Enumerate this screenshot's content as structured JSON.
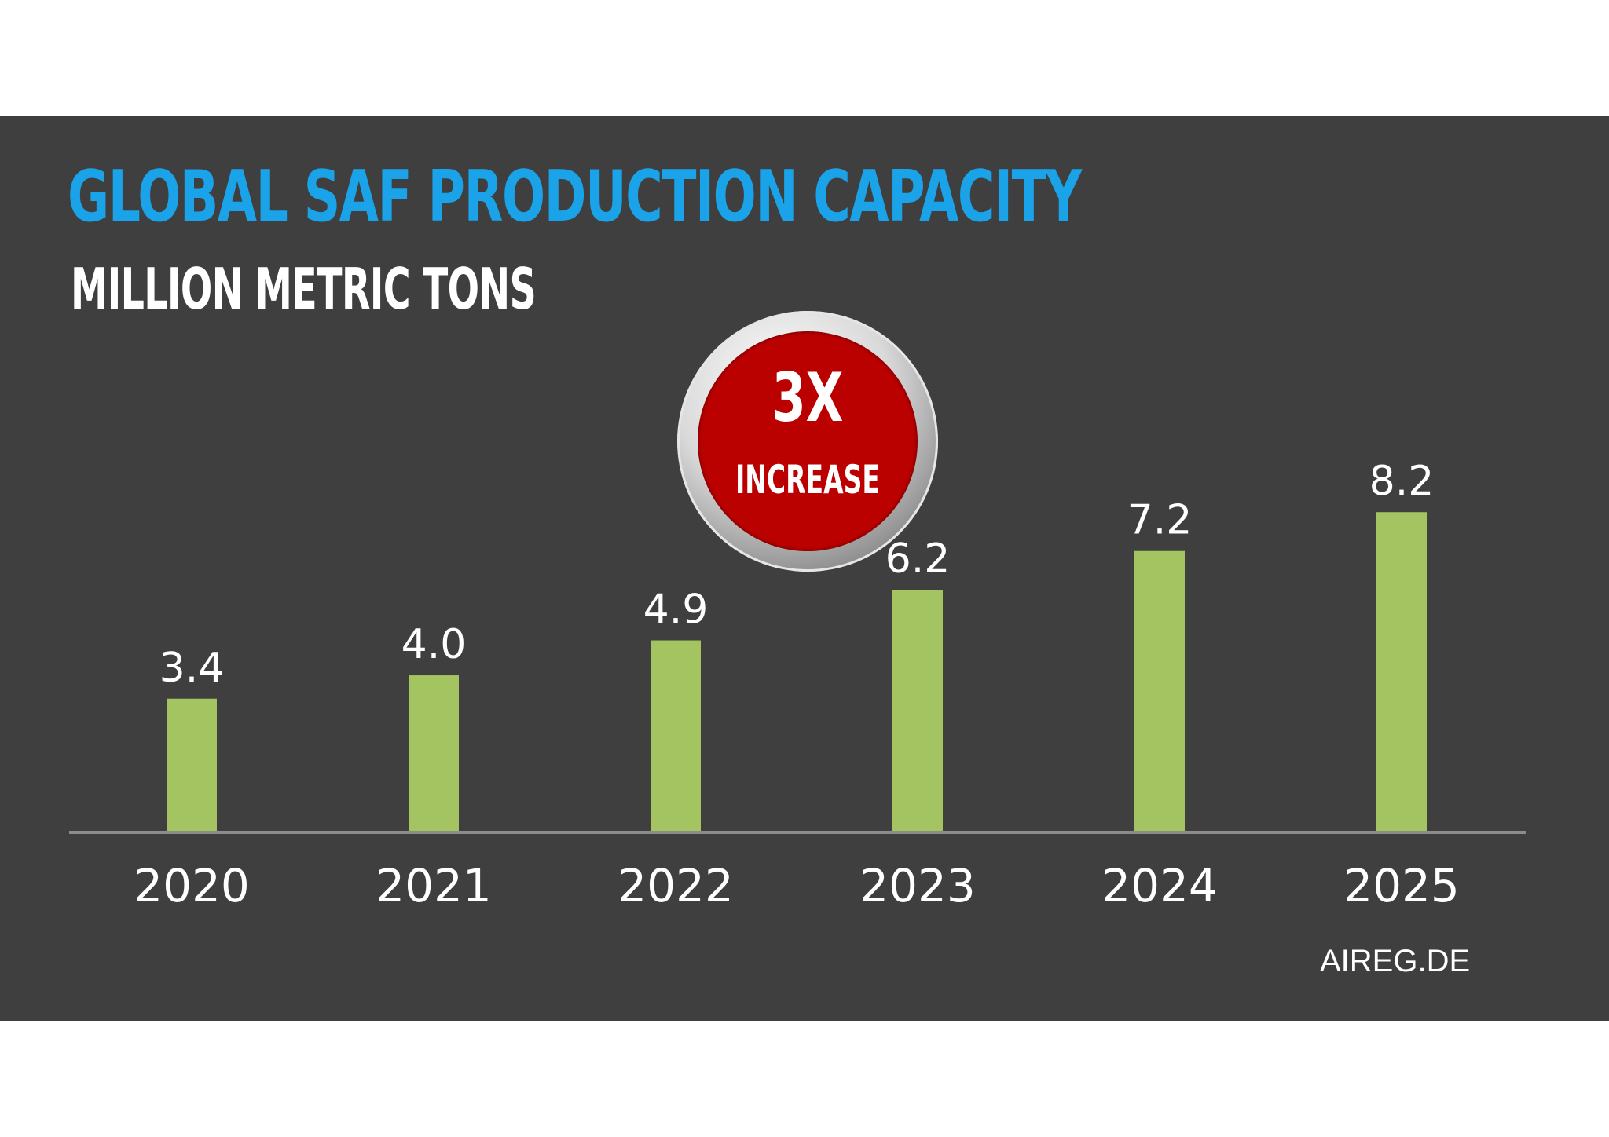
{
  "header": {
    "title": "GLOBAL SAF PRODUCTION CAPACITY",
    "subtitle": "MILLION METRIC TONS"
  },
  "badge": {
    "big_text": "3X",
    "small_text": "INCREASE"
  },
  "source": "AIREG.DE",
  "colors": {
    "background": "#3f3f3f",
    "title": "#1aa3e8",
    "bar": "#a3c460",
    "badge": "#bb0000",
    "axis": "#8c8c8c",
    "text": "#ffffff"
  },
  "chart_data": {
    "type": "bar",
    "title": "GLOBAL SAF PRODUCTION CAPACITY",
    "subtitle": "MILLION METRIC TONS",
    "categories": [
      "2020",
      "2021",
      "2022",
      "2023",
      "2024",
      "2025"
    ],
    "values": [
      3.4,
      4.0,
      4.9,
      6.2,
      7.2,
      8.2
    ],
    "data_labels": [
      "3.4",
      "4.0",
      "4.9",
      "6.2",
      "7.2",
      "8.2"
    ],
    "xlabel": "",
    "ylabel": "",
    "ylim": [
      0,
      9.7
    ],
    "grid": false,
    "legend": "none"
  }
}
